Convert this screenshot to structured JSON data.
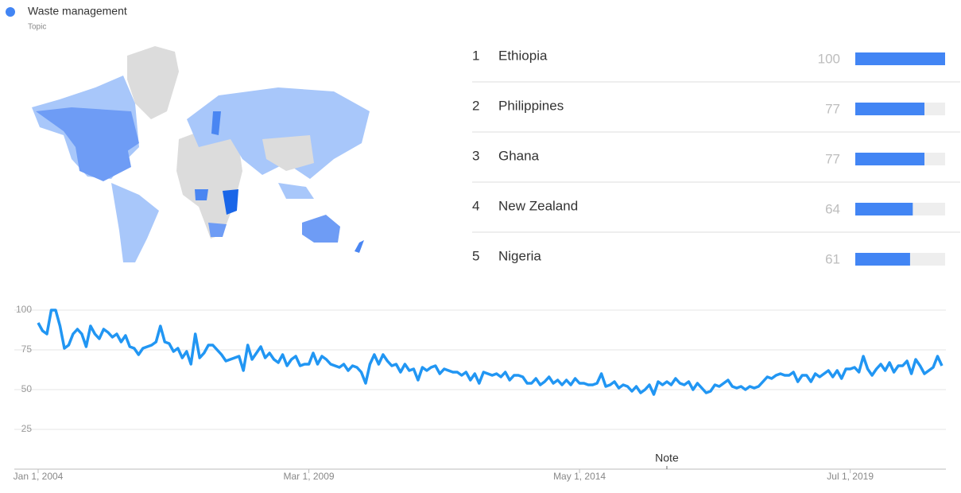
{
  "legend": {
    "term": "Waste management",
    "subtitle": "Topic"
  },
  "ranking": [
    {
      "rank": 1,
      "name": "Ethiopia",
      "value": 100
    },
    {
      "rank": 2,
      "name": "Philippines",
      "value": 77
    },
    {
      "rank": 3,
      "name": "Ghana",
      "value": 77
    },
    {
      "rank": 4,
      "name": "New Zealand",
      "value": 64
    },
    {
      "rank": 5,
      "name": "Nigeria",
      "value": 61
    }
  ],
  "bar_color": "#4285f4",
  "chart_data": {
    "type": "line",
    "categories": [
      "Jan 1, 2004",
      null,
      null,
      null,
      null,
      null,
      null,
      null,
      null,
      null,
      null,
      null,
      null,
      null,
      null,
      null,
      null,
      null,
      null,
      null,
      null,
      null,
      null,
      null,
      null,
      null,
      null,
      null,
      null,
      null,
      null,
      null,
      null,
      null,
      null,
      null,
      null,
      null,
      null,
      null,
      null,
      null,
      null,
      null,
      null,
      null,
      null,
      null,
      null,
      null,
      null,
      null,
      null,
      null,
      null,
      null,
      null,
      null,
      null,
      null,
      null,
      null,
      "Mar 1, 2009",
      null,
      null,
      null,
      null,
      null,
      null,
      null,
      null,
      null,
      null,
      null,
      null,
      null,
      null,
      null,
      null,
      null,
      null,
      null,
      null,
      null,
      null,
      null,
      null,
      null,
      null,
      null,
      null,
      null,
      null,
      null,
      null,
      null,
      null,
      null,
      null,
      null,
      null,
      null,
      null,
      null,
      null,
      null,
      null,
      null,
      null,
      null,
      null,
      null,
      null,
      null,
      null,
      null,
      null,
      null,
      null,
      null,
      null,
      null,
      null,
      null,
      "May 1, 2014",
      null,
      null,
      null,
      null,
      null,
      null,
      null,
      null,
      null,
      null,
      null,
      null,
      null,
      null,
      null,
      null,
      null,
      null,
      null,
      null,
      null,
      null,
      null,
      null,
      null,
      null,
      null,
      null,
      null,
      null,
      null,
      null,
      null,
      null,
      null,
      null,
      null,
      null,
      null,
      null,
      null,
      null,
      null,
      null,
      null,
      null,
      null,
      null,
      null,
      null,
      null,
      null,
      null,
      null,
      null,
      null,
      null,
      null,
      null,
      null,
      null,
      "Jul 1, 2019",
      null,
      null,
      null,
      null,
      null,
      null,
      null,
      null,
      null,
      null,
      null,
      null,
      null,
      null,
      null,
      null,
      null,
      null,
      null,
      null,
      null
    ],
    "series": [
      {
        "name": "Waste management",
        "color": "#2196f3",
        "values": [
          92,
          87,
          85,
          100,
          100,
          90,
          76,
          78,
          85,
          88,
          85,
          77,
          90,
          85,
          82,
          88,
          86,
          83,
          85,
          80,
          84,
          77,
          76,
          72,
          76,
          77,
          78,
          80,
          90,
          80,
          79,
          74,
          76,
          70,
          74,
          66,
          85,
          70,
          73,
          78,
          78,
          75,
          72,
          68,
          69,
          70,
          71,
          62,
          78,
          69,
          73,
          77,
          70,
          73,
          69,
          67,
          72,
          65,
          69,
          71,
          65,
          66,
          66,
          73,
          66,
          71,
          69,
          66,
          65,
          64,
          66,
          62,
          65,
          64,
          61,
          54,
          66,
          72,
          66,
          72,
          68,
          65,
          66,
          61,
          66,
          62,
          63,
          56,
          64,
          62,
          64,
          65,
          60,
          63,
          62,
          61,
          61,
          59,
          61,
          56,
          60,
          54,
          61,
          60,
          59,
          60,
          58,
          61,
          56,
          59,
          59,
          58,
          54,
          54,
          57,
          53,
          55,
          58,
          54,
          56,
          53,
          56,
          53,
          57,
          54,
          54,
          53,
          53,
          54,
          60,
          52,
          53,
          55,
          51,
          53,
          52,
          49,
          52,
          48,
          50,
          53,
          47,
          55,
          53,
          55,
          53,
          57,
          54,
          53,
          55,
          50,
          54,
          51,
          48,
          49,
          53,
          52,
          54,
          56,
          52,
          51,
          52,
          50,
          52,
          51,
          52,
          55,
          58,
          57,
          59,
          60,
          59,
          59,
          61,
          55,
          59,
          59,
          55,
          60,
          58,
          60,
          62,
          58,
          62,
          57,
          63,
          63,
          64,
          61,
          71,
          63,
          59,
          63,
          66,
          62,
          67,
          61,
          65,
          65,
          68,
          60,
          69,
          65,
          60,
          62,
          64,
          71,
          65
        ]
      }
    ],
    "ylim": [
      0,
      100
    ],
    "yticks": [
      25,
      50,
      75,
      100
    ],
    "grid": true,
    "annotations": [
      {
        "text": "Note",
        "x": 144
      }
    ]
  }
}
